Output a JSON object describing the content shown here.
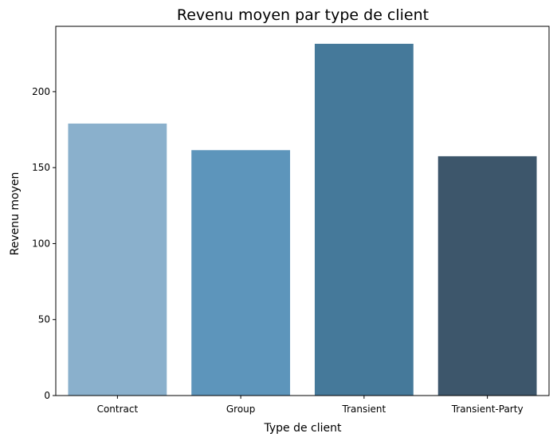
{
  "chart_data": {
    "type": "bar",
    "title": "Revenu moyen par type de client",
    "xlabel": "Type de client",
    "ylabel": "Revenu moyen",
    "categories": [
      "Contract",
      "Group",
      "Transient",
      "Transient-Party"
    ],
    "values": [
      179,
      161.5,
      231.5,
      157.5
    ],
    "colors": [
      "#8ab0cc",
      "#5d95bb",
      "#45799a",
      "#3d566b"
    ],
    "ylim": [
      0,
      243
    ],
    "yticks": [
      0,
      50,
      100,
      150,
      200
    ],
    "ytick_labels": [
      "0",
      "50",
      "100",
      "150",
      "200"
    ],
    "grid": false,
    "legend": false
  }
}
